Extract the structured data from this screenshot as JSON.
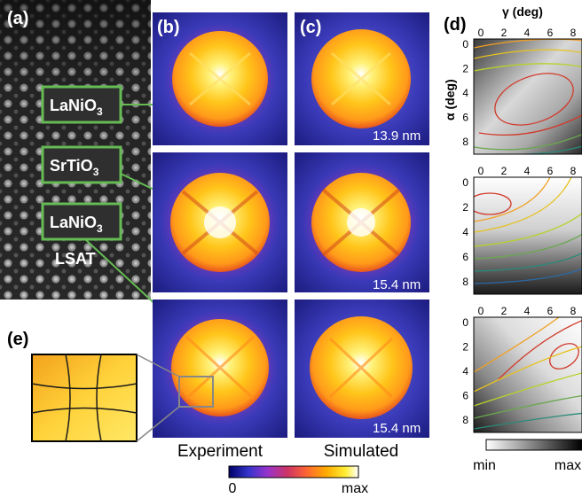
{
  "panels": {
    "a": "(a)",
    "b": "(b)",
    "c": "(c)",
    "d": "(d)",
    "e": "(e)"
  },
  "layers": {
    "top": {
      "base": "LaNiO",
      "sub": "3"
    },
    "middle": {
      "base": "SrTiO",
      "sub": "3"
    },
    "bottom": {
      "base": "LaNiO",
      "sub": "3"
    },
    "substrate": "LSAT"
  },
  "thickness_labels": [
    "13.9 nm",
    "15.4 nm",
    "15.4 nm"
  ],
  "column_labels": {
    "experiment": "Experiment",
    "simulated": "Simulated"
  },
  "colorbar_main": {
    "min": "0",
    "max": "max",
    "colors": [
      "#000066",
      "#3333cc",
      "#9933cc",
      "#cc3366",
      "#ff6633",
      "#ffaa00",
      "#ffee33",
      "#ffffff"
    ]
  },
  "colorbar_gray": {
    "min": "min",
    "max": "max"
  },
  "maps_d": {
    "x_label": "γ (deg)",
    "y_label": "α (deg)",
    "x_ticks": [
      "0",
      "2",
      "4",
      "6",
      "8"
    ],
    "y_ticks": [
      "0",
      "2",
      "4",
      "6",
      "8"
    ]
  }
}
